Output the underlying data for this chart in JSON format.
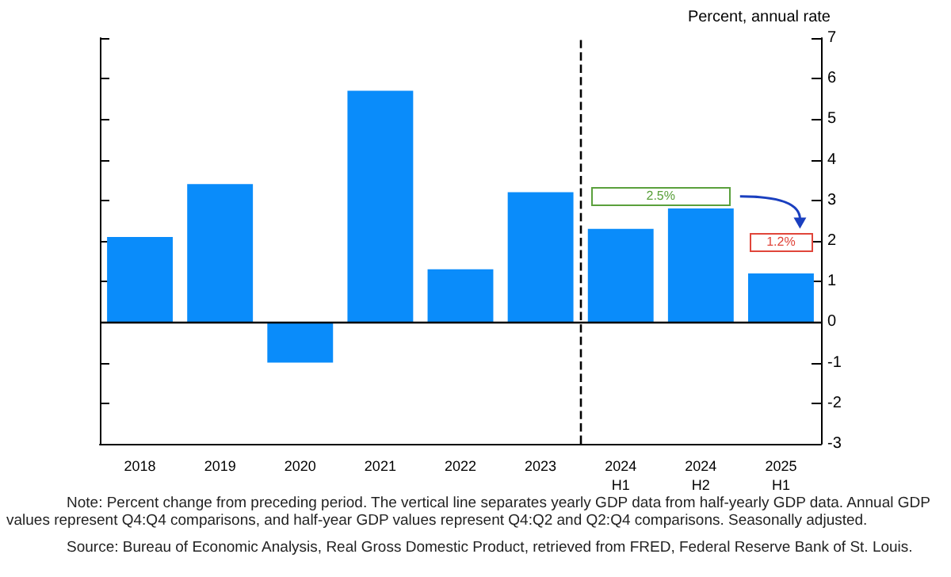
{
  "chart_data": {
    "type": "bar",
    "ylabel": "Percent, annual rate",
    "categories": [
      "2018",
      "2019",
      "2020",
      "2021",
      "2022",
      "2023",
      "2024\nH1",
      "2024\nH2",
      "2025\nH1"
    ],
    "values": [
      2.1,
      3.4,
      -1.0,
      5.7,
      1.3,
      3.2,
      2.3,
      2.8,
      1.2
    ],
    "color": "#0a8cfa",
    "ylim": [
      -3,
      7
    ],
    "yticks": [
      -3,
      -2,
      -1,
      0,
      1,
      2,
      3,
      4,
      5,
      6,
      7
    ],
    "grid": false,
    "ref_lines": [
      {
        "axis": "x",
        "value": "2024\nH1",
        "line_style": "dashed",
        "color": "#000000"
      },
      {
        "axis": "y",
        "value": 0,
        "line_style": "solid",
        "color": "#000000"
      }
    ],
    "annotations": [
      "2.5%",
      "1.2%",
      "Note: Percent change from preceding period. The vertical line separates yearly GDP data from half-yearly GDP data. Annual GDP values represent Q4:Q4 comparisons, and half-year GDP values represent Q4:Q2 and Q2:Q4 comparisons. Seasonally adjusted.",
      "Source: Bureau of Economic Analysis, Real Gross Domestic Product, retrieved from FRED, Federal Reserve Bank of St. Louis."
    ]
  }
}
